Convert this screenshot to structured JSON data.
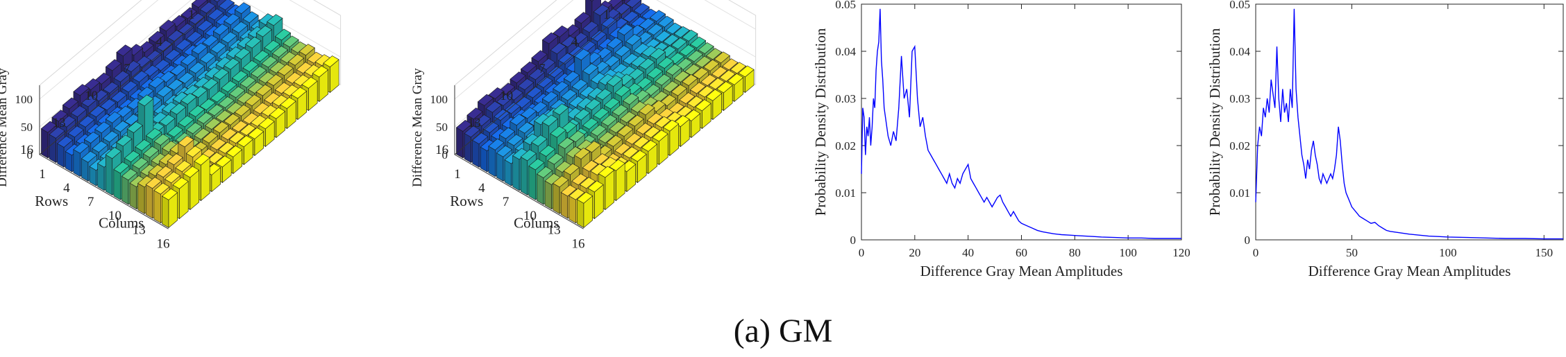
{
  "caption": "(a) GM",
  "chart_data": [
    {
      "type": "bar3d",
      "zlabel": "Difference Mean Gray",
      "xlabel": "Colums",
      "ylabel": "Rows",
      "xticks": [
        "1",
        "4",
        "7",
        "10",
        "13",
        "16"
      ],
      "yticks": [
        "1",
        "4",
        "7",
        "10",
        "13",
        "16"
      ],
      "zticks": [
        "0",
        "50",
        "100"
      ],
      "zlim": [
        0,
        120
      ],
      "rows": 16,
      "cols": 16,
      "colormap": "parula",
      "values": [
        [
          48,
          46,
          40,
          38,
          50,
          42,
          36,
          55,
          62,
          44,
          40,
          38,
          42,
          36,
          40,
          46
        ],
        [
          44,
          42,
          38,
          36,
          46,
          40,
          34,
          48,
          58,
          40,
          38,
          36,
          40,
          34,
          38,
          44
        ],
        [
          40,
          38,
          34,
          32,
          44,
          38,
          32,
          46,
          54,
          38,
          36,
          34,
          38,
          32,
          36,
          40
        ],
        [
          42,
          36,
          30,
          28,
          40,
          36,
          30,
          44,
          50,
          36,
          34,
          32,
          36,
          30,
          34,
          38
        ],
        [
          50,
          40,
          32,
          30,
          42,
          34,
          28,
          42,
          48,
          34,
          32,
          30,
          34,
          28,
          32,
          36
        ],
        [
          46,
          38,
          30,
          28,
          38,
          32,
          26,
          40,
          46,
          32,
          30,
          28,
          32,
          26,
          30,
          34
        ],
        [
          44,
          36,
          28,
          26,
          36,
          30,
          24,
          38,
          44,
          30,
          28,
          26,
          30,
          24,
          28,
          32
        ],
        [
          55,
          42,
          34,
          30,
          40,
          34,
          28,
          40,
          46,
          32,
          30,
          28,
          30,
          26,
          28,
          30
        ],
        [
          70,
          50,
          40,
          34,
          46,
          38,
          30,
          44,
          50,
          36,
          32,
          30,
          32,
          28,
          30,
          32
        ],
        [
          60,
          48,
          38,
          32,
          44,
          36,
          30,
          42,
          48,
          34,
          30,
          28,
          30,
          26,
          28,
          30
        ],
        [
          52,
          44,
          36,
          30,
          40,
          34,
          28,
          40,
          44,
          32,
          28,
          26,
          28,
          24,
          26,
          28
        ],
        [
          58,
          46,
          38,
          32,
          42,
          36,
          30,
          42,
          46,
          34,
          30,
          28,
          30,
          26,
          28,
          30
        ],
        [
          64,
          52,
          42,
          36,
          48,
          40,
          34,
          50,
          112,
          60,
          58,
          54,
          60,
          80,
          70,
          64
        ],
        [
          56,
          50,
          40,
          34,
          46,
          38,
          32,
          46,
          80,
          56,
          52,
          48,
          56,
          64,
          60,
          58
        ],
        [
          50,
          48,
          38,
          32,
          44,
          36,
          30,
          44,
          72,
          52,
          48,
          44,
          52,
          58,
          56,
          54
        ],
        [
          46,
          44,
          36,
          30,
          42,
          34,
          28,
          42,
          66,
          48,
          44,
          40,
          48,
          54,
          52,
          50
        ]
      ]
    },
    {
      "type": "bar3d",
      "zlabel": "Difference Mean Gray",
      "xlabel": "Colums",
      "ylabel": "Rows",
      "xticks": [
        "1",
        "4",
        "7",
        "10",
        "13",
        "16"
      ],
      "yticks": [
        "1",
        "4",
        "7",
        "10",
        "13",
        "16"
      ],
      "zticks": [
        "0",
        "50",
        "100"
      ],
      "zlim": [
        0,
        120
      ],
      "rows": 16,
      "cols": 16,
      "colormap": "parula",
      "values": [
        [
          40,
          36,
          32,
          30,
          36,
          34,
          30,
          32,
          34,
          30,
          28,
          26,
          28,
          24,
          26,
          28
        ],
        [
          44,
          40,
          34,
          32,
          38,
          36,
          32,
          34,
          36,
          32,
          30,
          28,
          30,
          26,
          28,
          30
        ],
        [
          52,
          46,
          38,
          34,
          42,
          38,
          34,
          36,
          38,
          34,
          32,
          30,
          32,
          28,
          30,
          32
        ],
        [
          88,
          70,
          56,
          46,
          60,
          50,
          42,
          46,
          50,
          42,
          38,
          34,
          36,
          30,
          32,
          34
        ],
        [
          64,
          56,
          48,
          42,
          52,
          46,
          40,
          44,
          48,
          40,
          36,
          32,
          34,
          28,
          30,
          32
        ],
        [
          58,
          52,
          46,
          40,
          50,
          44,
          38,
          42,
          46,
          38,
          34,
          30,
          32,
          26,
          28,
          30
        ],
        [
          72,
          62,
          52,
          46,
          58,
          50,
          44,
          48,
          52,
          44,
          40,
          36,
          38,
          32,
          34,
          36
        ],
        [
          76,
          66,
          56,
          50,
          80,
          62,
          54,
          60,
          66,
          56,
          50,
          44,
          48,
          40,
          42,
          44
        ],
        [
          60,
          54,
          48,
          44,
          56,
          50,
          46,
          52,
          58,
          50,
          46,
          42,
          44,
          38,
          40,
          42
        ],
        [
          56,
          52,
          46,
          42,
          54,
          48,
          44,
          50,
          56,
          48,
          44,
          40,
          42,
          36,
          38,
          40
        ],
        [
          54,
          50,
          44,
          40,
          52,
          46,
          42,
          48,
          54,
          46,
          42,
          38,
          40,
          34,
          36,
          38
        ],
        [
          50,
          48,
          42,
          38,
          50,
          44,
          40,
          46,
          52,
          44,
          40,
          36,
          38,
          32,
          34,
          36
        ],
        [
          58,
          54,
          48,
          44,
          56,
          50,
          46,
          80,
          96,
          72,
          64,
          56,
          62,
          48,
          50,
          54
        ],
        [
          62,
          58,
          52,
          46,
          60,
          54,
          50,
          86,
          92,
          80,
          68,
          60,
          66,
          52,
          54,
          58
        ],
        [
          54,
          50,
          46,
          42,
          52,
          48,
          44,
          66,
          72,
          62,
          56,
          50,
          54,
          44,
          46,
          48
        ],
        [
          48,
          46,
          42,
          38,
          48,
          44,
          40,
          56,
          62,
          54,
          48,
          44,
          48,
          40,
          42,
          44
        ]
      ]
    },
    {
      "type": "line",
      "xlabel": "Difference Gray Mean Amplitudes",
      "ylabel": "Probability Density Distribution",
      "xlim": [
        0,
        120
      ],
      "ylim": [
        0,
        0.05
      ],
      "xticks": [
        0,
        20,
        40,
        60,
        80,
        100,
        120
      ],
      "yticks": [
        0,
        0.01,
        0.02,
        0.03,
        0.04,
        0.05
      ],
      "ytick_labels": [
        "0",
        "0.01",
        "0.02",
        "0.03",
        "0.04",
        "0.05"
      ],
      "color": "#0000ff",
      "x": [
        0,
        0.5,
        1,
        1.5,
        2,
        2.5,
        3,
        3.5,
        4,
        4.5,
        5,
        5.5,
        6,
        6.5,
        7,
        7.5,
        8,
        8.5,
        9,
        9.5,
        10,
        11,
        12,
        13,
        14,
        15,
        16,
        17,
        18,
        19,
        20,
        21,
        22,
        23,
        24,
        25,
        26,
        27,
        28,
        29,
        30,
        31,
        32,
        33,
        34,
        35,
        36,
        37,
        38,
        39,
        40,
        41,
        42,
        43,
        44,
        45,
        46,
        47,
        48,
        49,
        50,
        51,
        52,
        53,
        54,
        55,
        56,
        57,
        58,
        59,
        60,
        62,
        64,
        66,
        68,
        70,
        72,
        75,
        78,
        81,
        84,
        87,
        90,
        95,
        100,
        105,
        110,
        115,
        120
      ],
      "y": [
        0.014,
        0.028,
        0.026,
        0.018,
        0.024,
        0.022,
        0.026,
        0.02,
        0.024,
        0.03,
        0.028,
        0.036,
        0.04,
        0.042,
        0.049,
        0.038,
        0.034,
        0.028,
        0.026,
        0.024,
        0.022,
        0.02,
        0.023,
        0.021,
        0.028,
        0.039,
        0.03,
        0.032,
        0.026,
        0.04,
        0.041,
        0.03,
        0.024,
        0.026,
        0.022,
        0.019,
        0.018,
        0.017,
        0.016,
        0.015,
        0.014,
        0.013,
        0.012,
        0.014,
        0.012,
        0.011,
        0.013,
        0.012,
        0.014,
        0.015,
        0.016,
        0.013,
        0.012,
        0.011,
        0.01,
        0.009,
        0.008,
        0.009,
        0.008,
        0.007,
        0.008,
        0.009,
        0.0095,
        0.008,
        0.007,
        0.006,
        0.005,
        0.006,
        0.005,
        0.004,
        0.0035,
        0.003,
        0.0025,
        0.002,
        0.0017,
        0.0015,
        0.0013,
        0.0011,
        0.001,
        0.0009,
        0.0008,
        0.0007,
        0.0006,
        0.0005,
        0.0004,
        0.0004,
        0.0003,
        0.0003,
        0.0003
      ]
    },
    {
      "type": "line",
      "xlabel": "Difference Gray Mean Amplitudes",
      "ylabel": "Probability Density Distribution",
      "xlim": [
        0,
        160
      ],
      "ylim": [
        0,
        0.05
      ],
      "xticks": [
        0,
        50,
        100,
        150
      ],
      "yticks": [
        0,
        0.01,
        0.02,
        0.03,
        0.04,
        0.05
      ],
      "ytick_labels": [
        "0",
        "0.01",
        "0.02",
        "0.03",
        "0.04",
        "0.05"
      ],
      "color": "#0000ff",
      "x": [
        0,
        1,
        2,
        3,
        4,
        5,
        6,
        7,
        8,
        9,
        10,
        11,
        12,
        13,
        14,
        15,
        16,
        17,
        18,
        19,
        20,
        21,
        22,
        23,
        24,
        25,
        26,
        27,
        28,
        29,
        30,
        31,
        32,
        33,
        34,
        35,
        36,
        37,
        38,
        39,
        40,
        41,
        42,
        43,
        44,
        45,
        46,
        47,
        48,
        49,
        50,
        52,
        54,
        56,
        58,
        60,
        62,
        64,
        66,
        68,
        70,
        75,
        80,
        85,
        90,
        95,
        100,
        110,
        120,
        130,
        140,
        150,
        160
      ],
      "y": [
        0.008,
        0.02,
        0.024,
        0.022,
        0.028,
        0.026,
        0.03,
        0.027,
        0.034,
        0.031,
        0.028,
        0.041,
        0.03,
        0.025,
        0.032,
        0.027,
        0.029,
        0.025,
        0.032,
        0.028,
        0.049,
        0.032,
        0.026,
        0.022,
        0.018,
        0.016,
        0.013,
        0.017,
        0.015,
        0.019,
        0.021,
        0.018,
        0.016,
        0.013,
        0.012,
        0.014,
        0.013,
        0.012,
        0.013,
        0.014,
        0.013,
        0.015,
        0.018,
        0.024,
        0.021,
        0.016,
        0.012,
        0.01,
        0.009,
        0.008,
        0.007,
        0.006,
        0.005,
        0.0045,
        0.004,
        0.0035,
        0.0037,
        0.003,
        0.0025,
        0.002,
        0.0018,
        0.0015,
        0.0012,
        0.001,
        0.0008,
        0.0007,
        0.0006,
        0.0005,
        0.0004,
        0.0003,
        0.0003,
        0.0002,
        0.0002
      ]
    }
  ]
}
